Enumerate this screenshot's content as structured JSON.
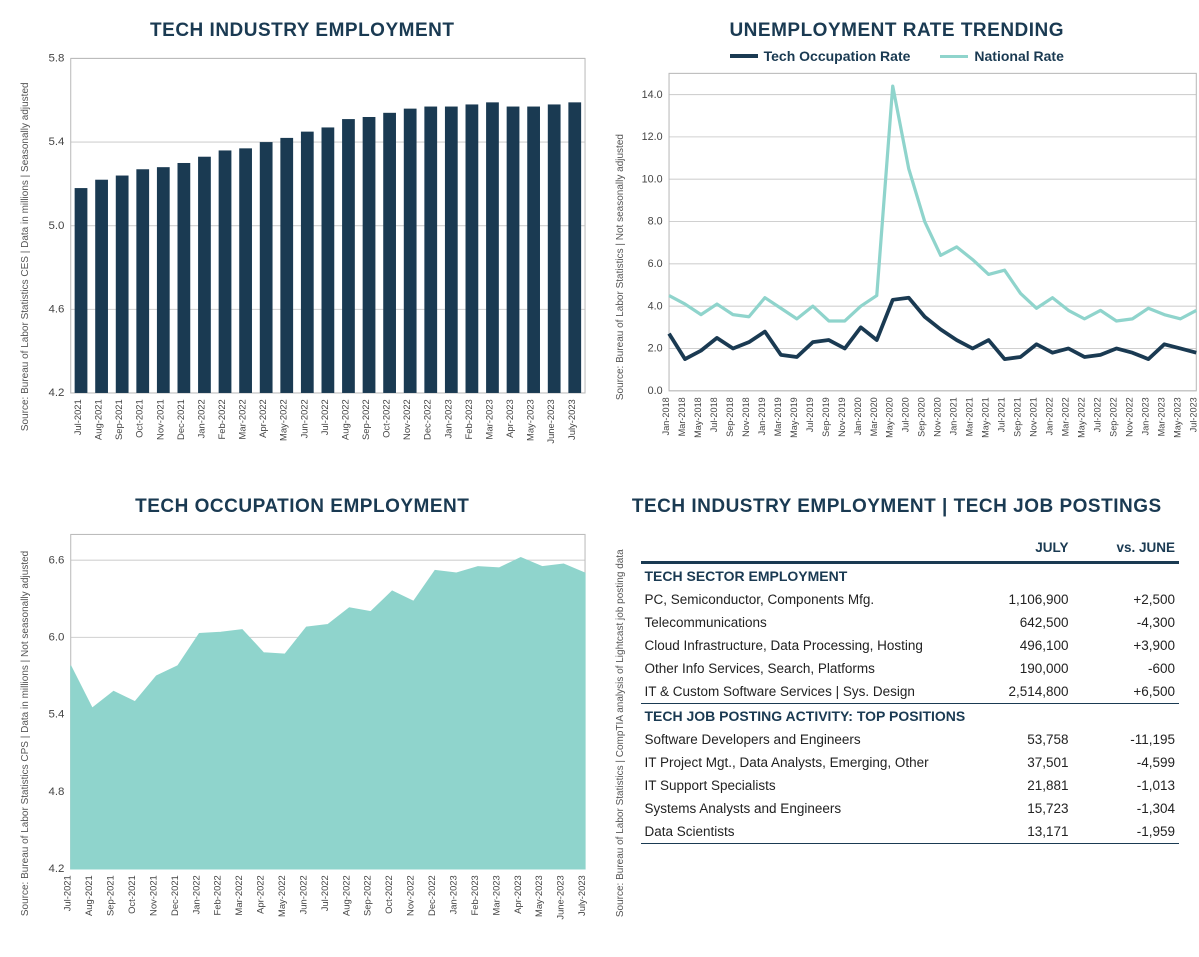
{
  "charts": {
    "employment_bar": {
      "title": "TECH INDUSTRY EMPLOYMENT",
      "type": "bar",
      "ylabel": "Source: Bureau of Labor Statistics CES | Data in millions | Seasonally adjusted",
      "ylim": [
        4.2,
        5.8
      ],
      "ytick_step": 0.4,
      "bar_color": "#1a3a52",
      "grid_color": "#d0d0d0",
      "background_color": "#ffffff",
      "categories": [
        "Jul-2021",
        "Aug-2021",
        "Sep-2021",
        "Oct-2021",
        "Nov-2021",
        "Dec-2021",
        "Jan-2022",
        "Feb-2022",
        "Mar-2022",
        "Apr-2022",
        "May-2022",
        "Jun-2022",
        "Jul-2022",
        "Aug-2022",
        "Sep-2022",
        "Oct-2022",
        "Nov-2022",
        "Dec-2022",
        "Jan-2023",
        "Feb-2023",
        "Mar-2023",
        "Apr-2023",
        "May-2023",
        "June-2023",
        "July-2023"
      ],
      "values": [
        5.18,
        5.22,
        5.24,
        5.27,
        5.28,
        5.3,
        5.33,
        5.36,
        5.37,
        5.4,
        5.42,
        5.45,
        5.47,
        5.51,
        5.52,
        5.54,
        5.56,
        5.57,
        5.57,
        5.58,
        5.59,
        5.57,
        5.57,
        5.58,
        5.59
      ]
    },
    "unemployment_line": {
      "title": "UNEMPLOYMENT RATE TRENDING",
      "type": "line",
      "ylabel": "Source: Bureau of Labor Statistics | Not seasonally adjusted",
      "ylim": [
        0.0,
        15.0
      ],
      "ytick_step": 2.0,
      "ytick_max_label": 14.0,
      "grid_color": "#d0d0d0",
      "legend": [
        {
          "label": "Tech Occupation Rate",
          "color": "#1a3a52",
          "width": 3.5
        },
        {
          "label": "National Rate",
          "color": "#8fd4cc",
          "width": 3
        }
      ],
      "x_labels": [
        "Jan-2018",
        "Mar-2018",
        "May-2018",
        "Jul-2018",
        "Sep-2018",
        "Nov-2018",
        "Jan-2019",
        "Mar-2019",
        "May-2019",
        "Jul-2019",
        "Sep-2019",
        "Nov-2019",
        "Jan-2020",
        "Mar-2020",
        "May-2020",
        "Jul-2020",
        "Sep-2020",
        "Nov-2020",
        "Jan-2021",
        "Mar-2021",
        "May-2021",
        "Jul-2021",
        "Sep-2021",
        "Nov-2021",
        "Jan-2022",
        "Mar-2022",
        "May-2022",
        "Jul-2022",
        "Sep-2022",
        "Nov-2022",
        "Jan-2023",
        "Mar-2023",
        "May-2023",
        "Jul-2023"
      ],
      "series": {
        "national": [
          4.5,
          4.1,
          3.6,
          4.1,
          3.6,
          3.5,
          4.4,
          3.9,
          3.4,
          4.0,
          3.3,
          3.3,
          4.0,
          4.5,
          14.4,
          10.5,
          8.0,
          6.4,
          6.8,
          6.2,
          5.5,
          5.7,
          4.6,
          3.9,
          4.4,
          3.8,
          3.4,
          3.8,
          3.3,
          3.4,
          3.9,
          3.6,
          3.4,
          3.8
        ],
        "tech": [
          2.7,
          1.5,
          1.9,
          2.5,
          2.0,
          2.3,
          2.8,
          1.7,
          1.6,
          2.3,
          2.4,
          2.0,
          3.0,
          2.4,
          4.3,
          4.4,
          3.5,
          2.9,
          2.4,
          2.0,
          2.4,
          1.5,
          1.6,
          2.2,
          1.8,
          2.0,
          1.6,
          1.7,
          2.0,
          1.8,
          1.5,
          2.2,
          2.0,
          1.8
        ]
      }
    },
    "occupation_area": {
      "title": "TECH OCCUPATION EMPLOYMENT",
      "type": "area",
      "ylabel": "Source: Bureau of Labor Statistics CPS | Data in millions | Not seasonally adjusted",
      "ylim": [
        4.2,
        6.8
      ],
      "yticks": [
        4.2,
        4.8,
        5.4,
        6.0,
        6.6
      ],
      "fill_color": "#8fd4cc",
      "grid_color": "#d0d0d0",
      "categories": [
        "Jul-2021",
        "Aug-2021",
        "Sep-2021",
        "Oct-2021",
        "Nov-2021",
        "Dec-2021",
        "Jan-2022",
        "Feb-2022",
        "Mar-2022",
        "Apr-2022",
        "May-2022",
        "Jun-2022",
        "Jul-2022",
        "Aug-2022",
        "Sep-2022",
        "Oct-2022",
        "Nov-2022",
        "Dec-2022",
        "Jan-2023",
        "Feb-2023",
        "Mar-2023",
        "Apr-2023",
        "May-2023",
        "June-2023",
        "July-2023"
      ],
      "values": [
        5.78,
        5.45,
        5.58,
        5.5,
        5.7,
        5.78,
        6.03,
        6.04,
        6.06,
        5.88,
        5.87,
        6.08,
        6.1,
        6.23,
        6.2,
        6.36,
        6.28,
        6.52,
        6.5,
        6.55,
        6.54,
        6.62,
        6.55,
        6.57,
        6.5
      ]
    },
    "table_panel": {
      "title": "TECH INDUSTRY EMPLOYMENT | TECH JOB POSTINGS",
      "ylabel": "Source: Bureau of Labor Statistics | CompTIA analysis of Lightcast job posting data",
      "col_headers": [
        "",
        "JULY",
        "vs. JUNE"
      ],
      "sections": [
        {
          "header": "TECH SECTOR EMPLOYMENT",
          "rows": [
            {
              "label": "PC, Semiconductor, Components Mfg.",
              "v1": "1,106,900",
              "v2": "+2,500"
            },
            {
              "label": "Telecommunications",
              "v1": "642,500",
              "v2": "-4,300"
            },
            {
              "label": "Cloud Infrastructure, Data Processing, Hosting",
              "v1": "496,100",
              "v2": "+3,900"
            },
            {
              "label": "Other Info Services, Search, Platforms",
              "v1": "190,000",
              "v2": "-600"
            },
            {
              "label": "IT & Custom Software Services | Sys. Design",
              "v1": "2,514,800",
              "v2": "+6,500"
            }
          ]
        },
        {
          "header": "TECH JOB POSTING ACTIVITY: TOP POSITIONS",
          "rows": [
            {
              "label": "Software Developers and Engineers",
              "v1": "53,758",
              "v2": "-11,195"
            },
            {
              "label": "IT Project Mgt., Data Analysts, Emerging, Other",
              "v1": "37,501",
              "v2": "-4,599"
            },
            {
              "label": "IT Support Specialists",
              "v1": "21,881",
              "v2": "-1,013"
            },
            {
              "label": "Systems Analysts and Engineers",
              "v1": "15,723",
              "v2": "-1,304"
            },
            {
              "label": "Data Scientists",
              "v1": "13,171",
              "v2": "-1,959"
            }
          ]
        }
      ]
    }
  }
}
